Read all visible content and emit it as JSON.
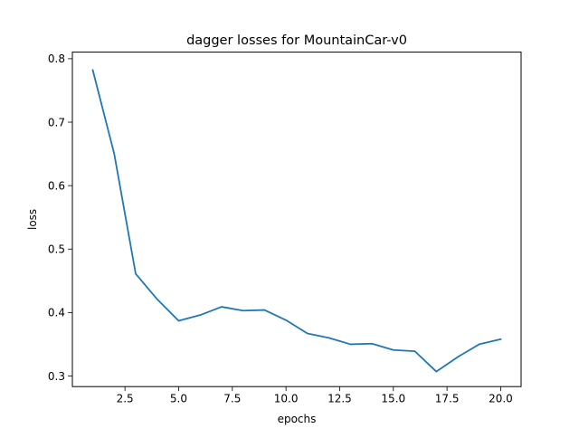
{
  "chart_data": {
    "type": "line",
    "title": "dagger losses for MountainCar-v0",
    "xlabel": "epochs",
    "ylabel": "loss",
    "x": [
      1,
      2,
      3,
      4,
      5,
      6,
      7,
      8,
      9,
      10,
      11,
      12,
      13,
      14,
      15,
      16,
      17,
      18,
      19,
      20
    ],
    "series": [
      {
        "values": [
          0.782,
          0.65,
          0.461,
          0.421,
          0.387,
          0.396,
          0.409,
          0.403,
          0.404,
          0.388,
          0.367,
          0.36,
          0.35,
          0.351,
          0.341,
          0.339,
          0.307,
          0.33,
          0.35,
          0.358
        ],
        "color": "#1f77b4"
      }
    ],
    "xlim": [
      0.05,
      20.95
    ],
    "ylim": [
      0.2833,
      0.8104
    ],
    "xticks": [
      2.5,
      5.0,
      7.5,
      10.0,
      12.5,
      15.0,
      17.5,
      20.0
    ],
    "xtick_labels": [
      "2.5",
      "5.0",
      "7.5",
      "10.0",
      "12.5",
      "15.0",
      "17.5",
      "20.0"
    ],
    "yticks": [
      0.3,
      0.4,
      0.5,
      0.6,
      0.7,
      0.8
    ],
    "ytick_labels": [
      "0.3",
      "0.4",
      "0.5",
      "0.6",
      "0.7",
      "0.8"
    ],
    "grid": false,
    "legend": "none"
  }
}
